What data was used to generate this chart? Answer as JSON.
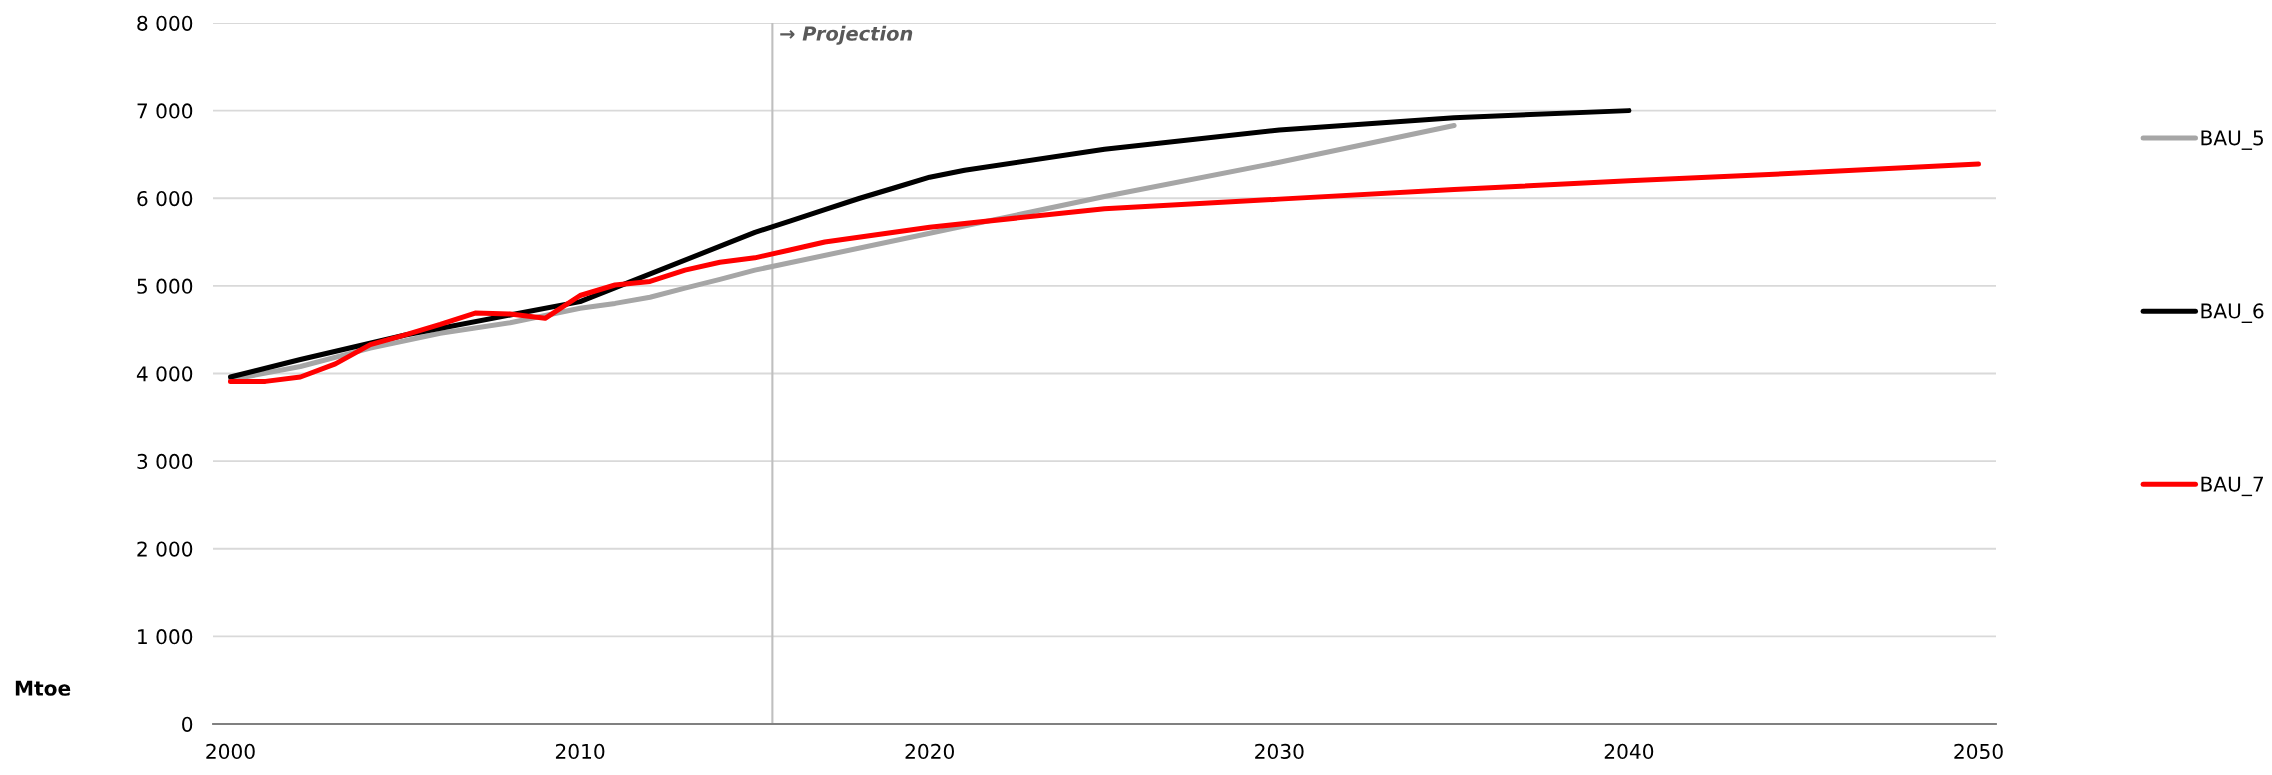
{
  "chart_data": {
    "type": "line",
    "ylabel": "Mtoe",
    "xlim": [
      1999.5,
      2050.5
    ],
    "xticks": [
      2000,
      2010,
      2020,
      2030,
      2040,
      2050
    ],
    "ylim": [
      0,
      8000
    ],
    "yticks": [
      {
        "value": 0,
        "label": "0"
      },
      {
        "value": 1000,
        "label": "1 000"
      },
      {
        "value": 2000,
        "label": "2 000"
      },
      {
        "value": 3000,
        "label": "3 000"
      },
      {
        "value": 4000,
        "label": "4 000"
      },
      {
        "value": 5000,
        "label": "5 000"
      },
      {
        "value": 6000,
        "label": "6 000"
      },
      {
        "value": 7000,
        "label": "7 000"
      },
      {
        "value": 8000,
        "label": "8 000"
      }
    ],
    "grid": "y",
    "legend": "right",
    "marker": "none",
    "line_style": "solid",
    "ref_lines": [
      {
        "axis": "x",
        "value": 2015.5,
        "label": "→ Projection",
        "color": "#bfbfbf"
      }
    ],
    "series": [
      {
        "name": "BAU_5",
        "color": "#a6a6a6",
        "x": [
          2000,
          2002,
          2004,
          2006,
          2008,
          2010,
          2011,
          2012,
          2013,
          2014,
          2015,
          2020,
          2025,
          2030,
          2035
        ],
        "values": [
          3930,
          4080,
          4290,
          4460,
          4580,
          4745,
          4800,
          4870,
          4975,
          5075,
          5180,
          5600,
          6020,
          6410,
          6830
        ]
      },
      {
        "name": "BAU_6",
        "color": "#000000",
        "x": [
          2000,
          2002,
          2005,
          2010,
          2015,
          2016,
          2017,
          2018,
          2019,
          2020,
          2021,
          2025,
          2030,
          2035,
          2040
        ],
        "values": [
          3960,
          4160,
          4440,
          4820,
          5610,
          5740,
          5870,
          6000,
          6120,
          6240,
          6320,
          6560,
          6780,
          6920,
          7000
        ]
      },
      {
        "name": "BAU_7",
        "color": "#ff0000",
        "x": [
          2000,
          2001,
          2002,
          2003,
          2004,
          2005,
          2006,
          2007,
          2008,
          2009,
          2010,
          2011,
          2012,
          2013,
          2014,
          2015,
          2016,
          2017,
          2020,
          2025,
          2030,
          2035,
          2040,
          2045,
          2050
        ],
        "values": [
          3910,
          3910,
          3960,
          4110,
          4330,
          4440,
          4560,
          4690,
          4680,
          4630,
          4890,
          5010,
          5050,
          5180,
          5270,
          5320,
          5410,
          5500,
          5670,
          5880,
          5990,
          6100,
          6200,
          6290,
          6390
        ]
      }
    ]
  }
}
